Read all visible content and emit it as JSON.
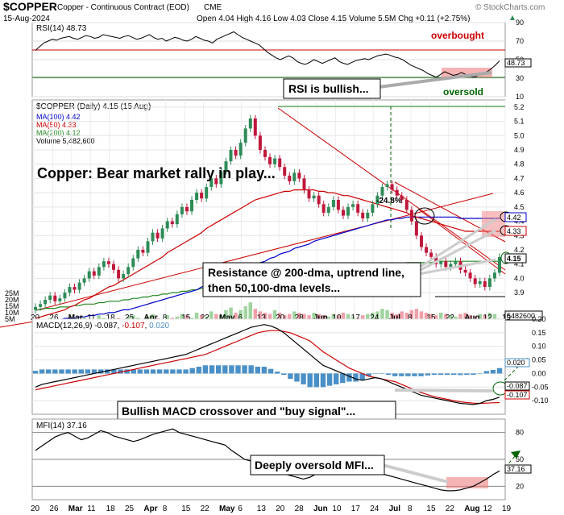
{
  "header": {
    "symbol": "$COPPER",
    "description": "Copper - Continuous Contract (EOD)",
    "exchange": "CME",
    "date": "15-Aug-2024",
    "ohlc": "Open 4.04  High 4.16  Low 4.03  Close 4.15  Volume 5.5M  Chg +0.11 (+2.75%)",
    "chg_icon": "up-triangle-icon",
    "watermark": "© StockCharts.com"
  },
  "colors": {
    "frame": "#b8b8b8",
    "candle_up": "#2e8b57",
    "candle_down": "#c0183c",
    "ma100": "#0000cd",
    "ma50": "#cc0000",
    "ma200": "#228b22",
    "volume_up": "#9fd49f",
    "volume_down": "#f0a0a8",
    "rsi_line": "#000000",
    "macd_line": "#000000",
    "signal_line": "#cc0000",
    "histogram": "#4a90c8",
    "mfi_line": "#000000",
    "overbought_line": "#cc0000",
    "oversold_line": "#006400",
    "highlight": "#f08080"
  },
  "chart_data": [
    {
      "panel": "rsi",
      "type": "line",
      "title": "RSI(14) 48.73",
      "last_value": "48.73",
      "ylim": [
        10,
        90
      ],
      "yticks": [
        "90",
        "70",
        "50",
        "30",
        "10"
      ],
      "levels": [
        70,
        30
      ],
      "values": [
        60,
        64,
        68,
        70,
        72,
        71,
        73,
        74,
        75,
        73,
        72,
        74,
        76,
        75,
        73,
        74,
        77,
        76,
        75,
        74,
        73,
        75,
        76,
        74,
        72,
        73,
        75,
        77,
        74,
        72,
        73,
        70,
        72,
        74,
        73,
        71,
        70,
        72,
        75,
        73,
        71,
        70,
        68,
        72,
        74,
        76,
        78,
        80,
        77,
        74,
        72,
        70,
        68,
        66,
        62,
        58,
        55,
        52,
        50,
        52,
        54,
        52,
        48,
        46,
        45,
        47,
        50,
        48,
        46,
        48,
        50,
        52,
        48,
        46,
        45,
        47,
        49,
        50,
        51,
        50,
        52,
        54,
        55,
        56,
        55,
        53,
        52,
        50,
        47,
        44,
        42,
        40,
        38,
        35,
        33,
        31,
        34,
        37,
        35,
        33,
        34,
        36,
        34,
        32,
        31,
        33,
        35,
        37,
        40,
        44,
        48.73
      ],
      "annotations": [
        "overbought",
        "oversold",
        "RSI is bullish..."
      ]
    },
    {
      "panel": "price",
      "type": "candlestick",
      "title": "$COPPER (Daily) 4.15 (15 Aug)",
      "legend": [
        "MA(100) 4.42",
        "MA(50) 4.33",
        "MA(200) 4.12",
        "Volume 5,482,600"
      ],
      "ylim": [
        3.85,
        5.25
      ],
      "yticks": [
        "5.2",
        "5.1",
        "5.0",
        "4.9",
        "4.8",
        "4.7",
        "4.6",
        "4.5",
        "4.4",
        "4.3",
        "4.2",
        "4.1",
        "4.0",
        "3.9"
      ],
      "volume_ticks": [
        "25M",
        "20M",
        "15M",
        "10M",
        "5M"
      ],
      "right_labels": [
        "4.42",
        "4.33",
        "4.15",
        "5482600"
      ],
      "close": [
        3.8,
        3.82,
        3.85,
        3.88,
        3.84,
        3.86,
        3.9,
        3.94,
        3.92,
        3.97,
        4.0,
        4.05,
        4.02,
        4.08,
        4.12,
        4.1,
        4.06,
        4.0,
        4.03,
        4.08,
        4.14,
        4.2,
        4.18,
        4.26,
        4.32,
        4.28,
        4.35,
        4.4,
        4.38,
        4.45,
        4.5,
        4.47,
        4.55,
        4.6,
        4.56,
        4.64,
        4.7,
        4.66,
        4.75,
        4.82,
        4.9,
        4.86,
        4.95,
        5.05,
        5.12,
        5.0,
        4.9,
        4.85,
        4.8,
        4.84,
        4.78,
        4.72,
        4.68,
        4.74,
        4.7,
        4.62,
        4.56,
        4.58,
        4.52,
        4.46,
        4.5,
        4.55,
        4.48,
        4.44,
        4.5,
        4.52,
        4.46,
        4.42,
        4.46,
        4.52,
        4.58,
        4.64,
        4.66,
        4.62,
        4.58,
        4.55,
        4.48,
        4.4,
        4.3,
        4.22,
        4.18,
        4.15,
        4.1,
        4.12,
        4.08,
        4.1,
        4.12,
        4.06,
        4.04,
        4.0,
        3.96,
        3.98,
        3.94,
        4.0,
        4.04,
        4.15
      ],
      "ma50": [
        3.72,
        3.73,
        3.74,
        3.75,
        3.76,
        3.77,
        3.78,
        3.8,
        3.81,
        3.83,
        3.85,
        3.86,
        3.88,
        3.9,
        3.92,
        3.94,
        3.95,
        3.97,
        3.99,
        4.01,
        4.03,
        4.05,
        4.07,
        4.09,
        4.11,
        4.13,
        4.15,
        4.18,
        4.2,
        4.22,
        4.24,
        4.26,
        4.28,
        4.3,
        4.32,
        4.35,
        4.37,
        4.39,
        4.41,
        4.43,
        4.45,
        4.47,
        4.49,
        4.51,
        4.53,
        4.55,
        4.56,
        4.57,
        4.58,
        4.59,
        4.6,
        4.61,
        4.61,
        4.62,
        4.62,
        4.62,
        4.62,
        4.62,
        4.61,
        4.61,
        4.6,
        4.6,
        4.59,
        4.58,
        4.58,
        4.57,
        4.56,
        4.55,
        4.54,
        4.53,
        4.52,
        4.51,
        4.5,
        4.49,
        4.48,
        4.47,
        4.46,
        4.44,
        4.43,
        4.42,
        4.41,
        4.4,
        4.39,
        4.38,
        4.37,
        4.36,
        4.35,
        4.34,
        4.33,
        4.33,
        4.33,
        4.33,
        4.33,
        4.33,
        4.33,
        4.33
      ],
      "ma100": [
        3.7,
        3.7,
        3.7,
        3.71,
        3.71,
        3.71,
        3.72,
        3.72,
        3.72,
        3.73,
        3.73,
        3.74,
        3.74,
        3.75,
        3.75,
        3.76,
        3.76,
        3.77,
        3.78,
        3.78,
        3.79,
        3.8,
        3.81,
        3.82,
        3.83,
        3.84,
        3.85,
        3.86,
        3.87,
        3.88,
        3.89,
        3.9,
        3.91,
        3.92,
        3.94,
        3.95,
        3.96,
        3.97,
        3.99,
        4.0,
        4.02,
        4.03,
        4.05,
        4.06,
        4.08,
        4.09,
        4.11,
        4.12,
        4.14,
        4.15,
        4.17,
        4.18,
        4.19,
        4.21,
        4.22,
        4.23,
        4.24,
        4.26,
        4.27,
        4.28,
        4.29,
        4.3,
        4.31,
        4.32,
        4.33,
        4.34,
        4.35,
        4.36,
        4.37,
        4.38,
        4.39,
        4.4,
        4.41,
        4.41,
        4.42,
        4.42,
        4.43,
        4.43,
        4.43,
        4.43,
        4.43,
        4.43,
        4.43,
        4.43,
        4.43,
        4.43,
        4.43,
        4.42,
        4.42,
        4.42,
        4.42,
        4.42,
        4.42,
        4.42,
        4.42,
        4.42
      ],
      "ma200": [
        3.78,
        3.78,
        3.79,
        3.79,
        3.79,
        3.8,
        3.8,
        3.8,
        3.81,
        3.81,
        3.82,
        3.82,
        3.82,
        3.83,
        3.83,
        3.84,
        3.84,
        3.84,
        3.85,
        3.85,
        3.86,
        3.86,
        3.87,
        3.87,
        3.88,
        3.88,
        3.89,
        3.89,
        3.9,
        3.9,
        3.91,
        3.91,
        3.92,
        3.92,
        3.93,
        3.93,
        3.94,
        3.94,
        3.95,
        3.95,
        3.96,
        3.96,
        3.97,
        3.97,
        3.98,
        3.98,
        3.99,
        3.99,
        4.0,
        4.0,
        4.01,
        4.01,
        4.02,
        4.02,
        4.03,
        4.03,
        4.04,
        4.04,
        4.05,
        4.05,
        4.06,
        4.06,
        4.06,
        4.07,
        4.07,
        4.07,
        4.08,
        4.08,
        4.08,
        4.09,
        4.09,
        4.09,
        4.1,
        4.1,
        4.1,
        4.1,
        4.11,
        4.11,
        4.11,
        4.11,
        4.11,
        4.11,
        4.12,
        4.12,
        4.12,
        4.12,
        4.12,
        4.12,
        4.12,
        4.12,
        4.12,
        4.12,
        4.12,
        4.12,
        4.12,
        4.12
      ],
      "volume_m": [
        4,
        3,
        5,
        6,
        3,
        4,
        5,
        7,
        4,
        5,
        6,
        5,
        4,
        8,
        6,
        5,
        4,
        6,
        5,
        7,
        8,
        6,
        5,
        7,
        9,
        6,
        5,
        8,
        6,
        7,
        9,
        8,
        6,
        10,
        8,
        7,
        11,
        9,
        8,
        12,
        14,
        10,
        12,
        15,
        18,
        13,
        11,
        10,
        9,
        12,
        10,
        8,
        9,
        11,
        10,
        9,
        8,
        10,
        9,
        8,
        7,
        9,
        8,
        10,
        9,
        7,
        6,
        8,
        9,
        10,
        11,
        13,
        12,
        10,
        9,
        11,
        10,
        12,
        13,
        11,
        10,
        9,
        8,
        10,
        9,
        8,
        7,
        9,
        10,
        8,
        7,
        9,
        8,
        10,
        9,
        5.5
      ],
      "annotations": [
        "-24.8%",
        "Copper: Bear market rally in play...",
        "Resistance @ 200-dma, uptrend line, then 50,100-dma levels..."
      ],
      "xticks": [
        "20",
        "26",
        "Mar",
        "11",
        "18",
        "25",
        "Apr",
        "8",
        "15",
        "22",
        "May",
        "6",
        "13",
        "20",
        "28",
        "Jun",
        "10",
        "17",
        "24",
        "Jul",
        "8",
        "15",
        "22",
        "Aug",
        "12",
        "19"
      ]
    },
    {
      "panel": "macd",
      "type": "line",
      "title": "MACD(12,26,9) -0.087, -0.107, 0.020",
      "title_parts": [
        "MACD(12,26,9) -0.087, ",
        "-0.107",
        ", ",
        "0.020"
      ],
      "ylim": [
        -0.15,
        0.2
      ],
      "yticks": [
        "0.20",
        "0.15",
        "0.10",
        "0.05",
        "0.00",
        "-0.05",
        "-0.10"
      ],
      "right_labels": [
        "0.020",
        "-0.087",
        "-0.107"
      ],
      "macd": [
        -0.05,
        -0.04,
        -0.035,
        -0.03,
        -0.025,
        -0.02,
        -0.015,
        -0.01,
        -0.005,
        0.0,
        0.005,
        0.01,
        0.015,
        0.02,
        0.025,
        0.03,
        0.035,
        0.04,
        0.045,
        0.05,
        0.055,
        0.06,
        0.065,
        0.07,
        0.08,
        0.09,
        0.1,
        0.11,
        0.12,
        0.13,
        0.14,
        0.15,
        0.16,
        0.17,
        0.175,
        0.18,
        0.175,
        0.165,
        0.15,
        0.13,
        0.11,
        0.09,
        0.07,
        0.05,
        0.03,
        0.02,
        0.01,
        0.0,
        -0.01,
        -0.02,
        -0.025,
        -0.02,
        -0.015,
        -0.02,
        -0.03,
        -0.04,
        -0.05,
        -0.06,
        -0.07,
        -0.08,
        -0.085,
        -0.09,
        -0.095,
        -0.1,
        -0.105,
        -0.11,
        -0.112,
        -0.114,
        -0.11,
        -0.1,
        -0.095,
        -0.087
      ],
      "signal": [
        -0.06,
        -0.055,
        -0.05,
        -0.045,
        -0.04,
        -0.035,
        -0.03,
        -0.025,
        -0.02,
        -0.015,
        -0.01,
        -0.005,
        0.0,
        0.005,
        0.01,
        0.015,
        0.02,
        0.025,
        0.03,
        0.035,
        0.04,
        0.045,
        0.05,
        0.055,
        0.06,
        0.065,
        0.07,
        0.08,
        0.09,
        0.1,
        0.11,
        0.12,
        0.13,
        0.14,
        0.15,
        0.155,
        0.158,
        0.158,
        0.155,
        0.15,
        0.14,
        0.13,
        0.12,
        0.1,
        0.08,
        0.065,
        0.05,
        0.035,
        0.02,
        0.01,
        0.0,
        -0.01,
        -0.015,
        -0.02,
        -0.025,
        -0.03,
        -0.04,
        -0.05,
        -0.06,
        -0.07,
        -0.078,
        -0.085,
        -0.09,
        -0.095,
        -0.1,
        -0.104,
        -0.107,
        -0.109,
        -0.11,
        -0.109,
        -0.108,
        -0.107
      ],
      "histogram": [
        0.01,
        0.015,
        0.015,
        0.015,
        0.015,
        0.015,
        0.015,
        0.015,
        0.015,
        0.015,
        0.015,
        0.015,
        0.015,
        0.015,
        0.015,
        0.015,
        0.015,
        0.015,
        0.015,
        0.015,
        0.015,
        0.015,
        0.015,
        0.015,
        0.02,
        0.025,
        0.03,
        0.03,
        0.03,
        0.03,
        0.03,
        0.03,
        0.03,
        0.03,
        0.025,
        0.025,
        0.017,
        0.007,
        -0.005,
        -0.02,
        -0.03,
        -0.04,
        -0.05,
        -0.05,
        -0.05,
        -0.045,
        -0.04,
        -0.035,
        -0.03,
        -0.03,
        -0.025,
        -0.01,
        0.0,
        0.0,
        -0.005,
        -0.01,
        -0.01,
        -0.01,
        -0.01,
        -0.01,
        -0.007,
        -0.005,
        -0.005,
        -0.005,
        -0.005,
        -0.006,
        -0.005,
        -0.005,
        0.0,
        0.009,
        0.013,
        0.02
      ],
      "annotations": [
        "Bullish MACD crossover and \"buy signal\"..."
      ]
    },
    {
      "panel": "mfi",
      "type": "line",
      "title": "MFI(14) 37.16",
      "last_value": "37.16",
      "ylim": [
        5,
        95
      ],
      "yticks": [
        "80",
        "50",
        "20"
      ],
      "levels": [
        80,
        20
      ],
      "values": [
        60,
        65,
        70,
        75,
        78,
        80,
        76,
        72,
        74,
        78,
        82,
        80,
        76,
        74,
        72,
        70,
        72,
        75,
        78,
        80,
        82,
        84,
        80,
        78,
        76,
        74,
        72,
        70,
        68,
        66,
        60,
        55,
        50,
        48,
        45,
        40,
        38,
        36,
        34,
        32,
        30,
        28,
        30,
        34,
        38,
        42,
        46,
        50,
        48,
        44,
        40,
        38,
        36,
        34,
        32,
        30,
        28,
        26,
        24,
        22,
        20,
        18,
        16,
        15,
        15,
        16,
        18,
        20,
        24,
        28,
        33,
        37.16
      ],
      "annotations": [
        "Deeply oversold MFI..."
      ]
    }
  ]
}
